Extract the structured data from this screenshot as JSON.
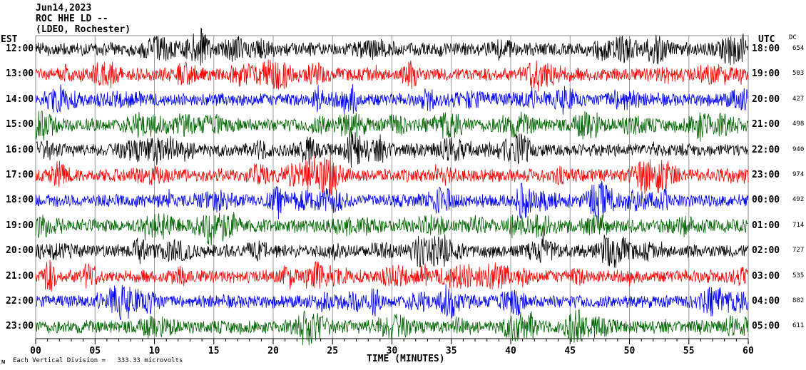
{
  "chart_data": {
    "type": "line",
    "title": "Jun14,2023",
    "station": "ROC HHE LD --",
    "location": "(LDEO, Rochester)",
    "left_label": "EST",
    "right_label": "UTC",
    "dc_label": "DC",
    "xlabel": "TIME (MINUTES)",
    "xlim": [
      0,
      60
    ],
    "x_ticks": [
      "00",
      "05",
      "10",
      "15",
      "20",
      "25",
      "30",
      "35",
      "40",
      "45",
      "50",
      "55",
      "60"
    ],
    "scale_note": "Each Vertical Division =   333.33 microvolts",
    "corner_mark": "ᴍ",
    "rows": [
      {
        "est": "12:00",
        "utc": "18:00",
        "dc": "654",
        "color": "#000000"
      },
      {
        "est": "13:00",
        "utc": "19:00",
        "dc": "503",
        "color": "#ff0000"
      },
      {
        "est": "14:00",
        "utc": "20:00",
        "dc": "427",
        "color": "#0000ff"
      },
      {
        "est": "15:00",
        "utc": "21:00",
        "dc": "498",
        "color": "#006400"
      },
      {
        "est": "16:00",
        "utc": "22:00",
        "dc": "940",
        "color": "#000000"
      },
      {
        "est": "17:00",
        "utc": "23:00",
        "dc": "974",
        "color": "#ff0000"
      },
      {
        "est": "18:00",
        "utc": "00:00",
        "dc": "492",
        "color": "#0000ff"
      },
      {
        "est": "19:00",
        "utc": "01:00",
        "dc": "714",
        "color": "#006400"
      },
      {
        "est": "20:00",
        "utc": "02:00",
        "dc": "727",
        "color": "#000000"
      },
      {
        "est": "21:00",
        "utc": "03:00",
        "dc": "535",
        "color": "#ff0000"
      },
      {
        "est": "22:00",
        "utc": "04:00",
        "dc": "882",
        "color": "#0000ff"
      },
      {
        "est": "23:00",
        "utc": "05:00",
        "dc": "611",
        "color": "#006400"
      }
    ]
  }
}
